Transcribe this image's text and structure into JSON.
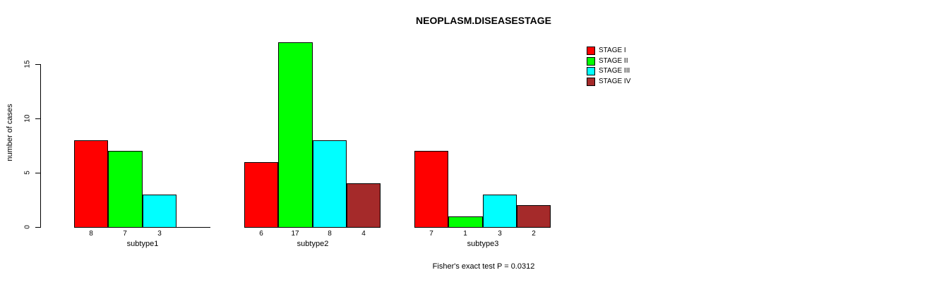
{
  "title": "NEOPLASM.DISEASESTAGE",
  "footer": "Fisher's exact test P = 0.0312",
  "chart_data": {
    "type": "bar",
    "title": "NEOPLASM.DISEASESTAGE",
    "xlabel": "",
    "ylabel": "number of cases",
    "ylim": [
      0,
      17
    ],
    "yticks": [
      0,
      5,
      10,
      15
    ],
    "grid": false,
    "legend_position": "top-right",
    "bar_value_labels_shown": true,
    "categories": [
      "subtype1",
      "subtype2",
      "subtype3"
    ],
    "series": [
      {
        "name": "STAGE I",
        "color": "#FF0000",
        "values": [
          8,
          6,
          7
        ]
      },
      {
        "name": "STAGE II",
        "color": "#00FF00",
        "values": [
          7,
          17,
          1
        ]
      },
      {
        "name": "STAGE III",
        "color": "#00FFFF",
        "values": [
          3,
          8,
          3
        ]
      },
      {
        "name": "STAGE IV",
        "color": "#A52A2A",
        "values": [
          0,
          4,
          2
        ]
      }
    ],
    "annotation": "Fisher's exact test P = 0.0312"
  }
}
